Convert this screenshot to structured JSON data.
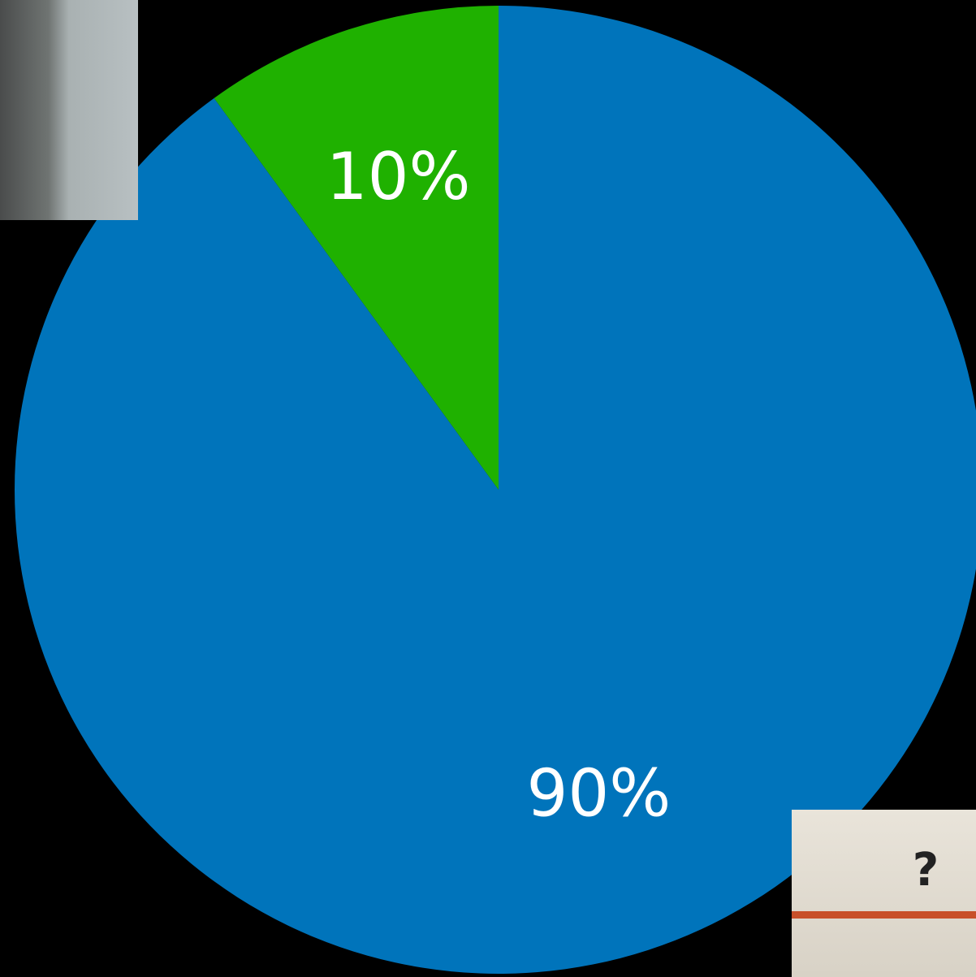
{
  "chart_data": {
    "type": "pie",
    "values": [
      90,
      10
    ],
    "value_labels": [
      "90%",
      "10%"
    ],
    "colors": [
      "#0074bb",
      "#1fb100"
    ],
    "start_angle": "top",
    "direction": "clockwise"
  },
  "inset_photo_text": "?"
}
